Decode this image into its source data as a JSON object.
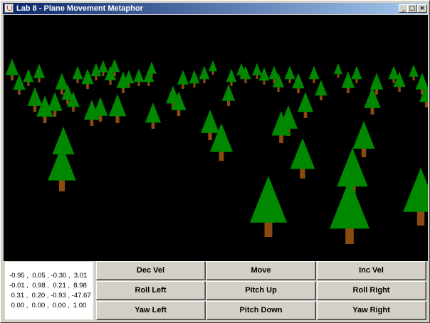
{
  "window": {
    "title": "Lab 8 - Plane Movement Metaphor",
    "controls": {
      "minimize": "_",
      "maximize": "□",
      "close": "×"
    }
  },
  "matrix": {
    "rows": [
      "-0.95 ,  0.05 , -0.30 ,  3.01",
      "-0.01 ,  0.98 ,  0.21 ,  8.98",
      " 0.31 ,  0.20 , -0.93 , -47.67",
      " 0.00 ,  0.00 ,  0.00 ,  1.00"
    ]
  },
  "buttons": {
    "dec_vel": "Dec Vel",
    "move": "Move",
    "inc_vel": "Inc Vel",
    "roll_left": "Roll Left",
    "pitch_up": "Pitch Up",
    "roll_right": "Roll Right",
    "yaw_left": "Yaw Left",
    "pitch_down": "Pitch Down",
    "yaw_right": "Yaw Right"
  },
  "colors": {
    "sky": "#000000",
    "foliage": "#008800",
    "trunk": "#8b4a10",
    "title_bar": "#0a246a",
    "panel": "#d4d0c8"
  }
}
